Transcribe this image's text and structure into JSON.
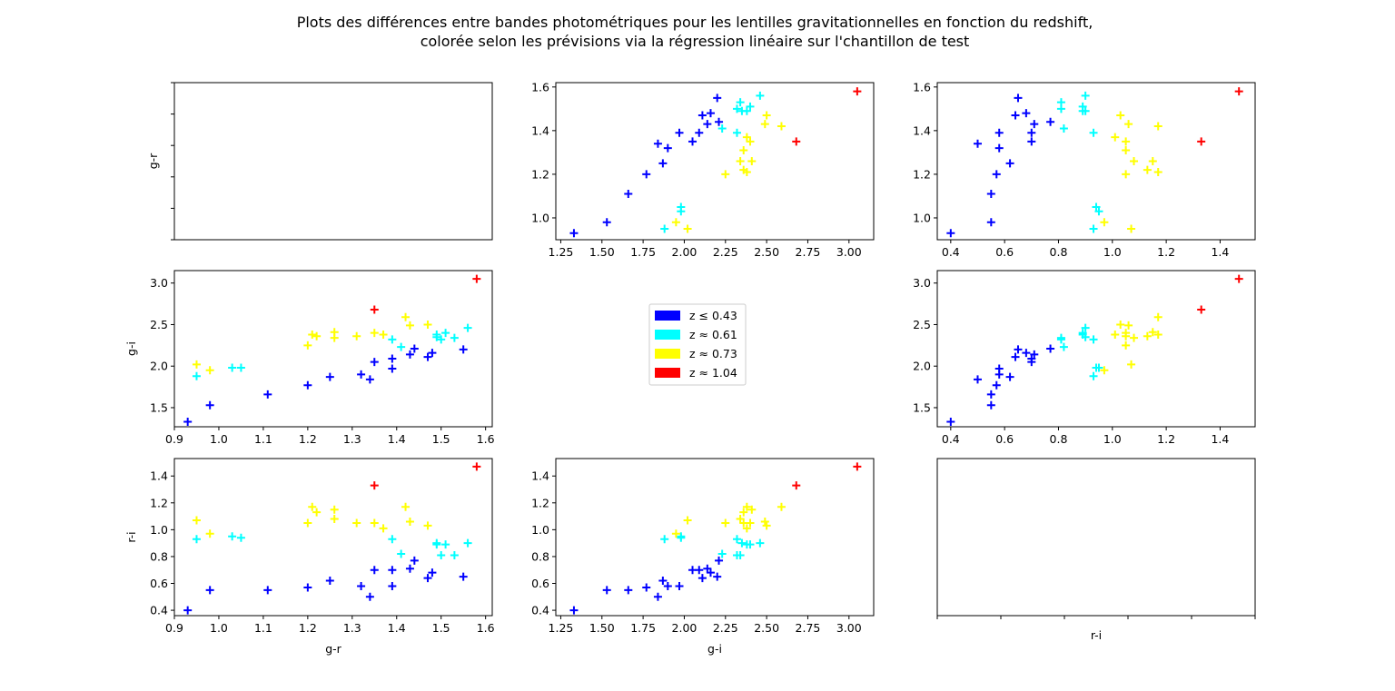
{
  "figure": {
    "title_line1": "Plots des différences entre bandes photométriques pour les lentilles gravitationnelles en fonction du redshift,",
    "title_line2": "colorée selon les prévisions via la régression linéaire sur l'chantillon de test"
  },
  "legend": {
    "items": [
      {
        "label": "z ≤ 0.43",
        "color": "#0000ff"
      },
      {
        "label": "z ≈ 0.61",
        "color": "#00ffff"
      },
      {
        "label": "z ≈ 0.73",
        "color": "#ffff00"
      },
      {
        "label": "z ≈ 1.04",
        "color": "#ff0000"
      }
    ]
  },
  "chart_data": [
    {
      "type": "scatter",
      "panel": "row1-col1",
      "empty": true,
      "xlabel": "",
      "ylabel": "g-r",
      "xticks": [],
      "yticks": []
    },
    {
      "type": "scatter",
      "panel": "row1-col2",
      "x": "g-i",
      "y": "g-r",
      "xlabel": "",
      "ylabel": "",
      "xlim": [
        1.22,
        3.15
      ],
      "ylim": [
        0.9,
        1.62
      ],
      "xticks": [
        "1.25",
        "1.50",
        "1.75",
        "2.00",
        "2.25",
        "2.50",
        "2.75",
        "3.00"
      ],
      "yticks": [
        "1.0",
        "1.2",
        "1.4",
        "1.6"
      ]
    },
    {
      "type": "scatter",
      "panel": "row1-col3",
      "x": "r-i",
      "y": "g-r",
      "xlabel": "",
      "ylabel": "",
      "xlim": [
        0.35,
        1.53
      ],
      "ylim": [
        0.9,
        1.62
      ],
      "xticks": [
        "0.4",
        "0.6",
        "0.8",
        "1.0",
        "1.2",
        "1.4"
      ],
      "yticks": [
        "1.0",
        "1.2",
        "1.4",
        "1.6"
      ]
    },
    {
      "type": "scatter",
      "panel": "row2-col1",
      "x": "g-r",
      "y": "g-i",
      "xlabel": "",
      "ylabel": "g-i",
      "xlim": [
        0.9,
        1.615
      ],
      "ylim": [
        1.27,
        3.15
      ],
      "xticks": [
        "0.9",
        "1.0",
        "1.1",
        "1.2",
        "1.3",
        "1.4",
        "1.5",
        "1.6"
      ],
      "yticks": [
        "1.5",
        "2.0",
        "2.5",
        "3.0"
      ]
    },
    {
      "type": "scatter",
      "panel": "row2-col3",
      "x": "r-i",
      "y": "g-i",
      "xlabel": "",
      "ylabel": "",
      "xlim": [
        0.35,
        1.53
      ],
      "ylim": [
        1.27,
        3.15
      ],
      "xticks": [
        "0.4",
        "0.6",
        "0.8",
        "1.0",
        "1.2",
        "1.4"
      ],
      "yticks": [
        "1.5",
        "2.0",
        "2.5",
        "3.0"
      ]
    },
    {
      "type": "scatter",
      "panel": "row3-col1",
      "x": "g-r",
      "y": "r-i",
      "xlabel": "g-r",
      "ylabel": "r-i",
      "xlim": [
        0.9,
        1.615
      ],
      "ylim": [
        0.36,
        1.53
      ],
      "xticks": [
        "0.9",
        "1.0",
        "1.1",
        "1.2",
        "1.3",
        "1.4",
        "1.5",
        "1.6"
      ],
      "yticks": [
        "0.4",
        "0.6",
        "0.8",
        "1.0",
        "1.2",
        "1.4"
      ]
    },
    {
      "type": "scatter",
      "panel": "row3-col2",
      "x": "g-i",
      "y": "r-i",
      "xlabel": "g-i",
      "ylabel": "",
      "xlim": [
        1.22,
        3.15
      ],
      "ylim": [
        0.36,
        1.53
      ],
      "xticks": [
        "1.25",
        "1.50",
        "1.75",
        "2.00",
        "2.25",
        "2.50",
        "2.75",
        "3.00"
      ],
      "yticks": [
        "0.4",
        "0.6",
        "0.8",
        "1.0",
        "1.2",
        "1.4"
      ]
    },
    {
      "type": "scatter",
      "panel": "row3-col3",
      "empty": true,
      "xlabel": "r-i",
      "ylabel": "",
      "xticks": [],
      "yticks": []
    }
  ],
  "points": [
    {
      "gr": 0.93,
      "gi": 1.33,
      "ri": 0.4,
      "c": 0
    },
    {
      "gr": 0.98,
      "gi": 1.53,
      "ri": 0.55,
      "c": 0
    },
    {
      "gr": 1.11,
      "gi": 1.66,
      "ri": 0.55,
      "c": 0
    },
    {
      "gr": 1.2,
      "gi": 1.77,
      "ri": 0.57,
      "c": 0
    },
    {
      "gr": 1.25,
      "gi": 1.87,
      "ri": 0.62,
      "c": 0
    },
    {
      "gr": 1.32,
      "gi": 1.9,
      "ri": 0.58,
      "c": 0
    },
    {
      "gr": 1.34,
      "gi": 1.84,
      "ri": 0.5,
      "c": 0
    },
    {
      "gr": 1.35,
      "gi": 2.05,
      "ri": 0.7,
      "c": 0
    },
    {
      "gr": 1.39,
      "gi": 1.97,
      "ri": 0.58,
      "c": 0
    },
    {
      "gr": 1.39,
      "gi": 2.09,
      "ri": 0.7,
      "c": 0
    },
    {
      "gr": 1.43,
      "gi": 2.14,
      "ri": 0.71,
      "c": 0
    },
    {
      "gr": 1.44,
      "gi": 2.21,
      "ri": 0.77,
      "c": 0
    },
    {
      "gr": 1.47,
      "gi": 2.11,
      "ri": 0.64,
      "c": 0
    },
    {
      "gr": 1.48,
      "gi": 2.16,
      "ri": 0.68,
      "c": 0
    },
    {
      "gr": 1.55,
      "gi": 2.2,
      "ri": 0.65,
      "c": 0
    },
    {
      "gr": 0.95,
      "gi": 1.88,
      "ri": 0.93,
      "c": 1
    },
    {
      "gr": 1.03,
      "gi": 1.98,
      "ri": 0.95,
      "c": 1
    },
    {
      "gr": 1.05,
      "gi": 1.98,
      "ri": 0.94,
      "c": 1
    },
    {
      "gr": 1.39,
      "gi": 2.32,
      "ri": 0.93,
      "c": 1
    },
    {
      "gr": 1.41,
      "gi": 2.23,
      "ri": 0.82,
      "c": 1
    },
    {
      "gr": 1.49,
      "gi": 2.38,
      "ri": 0.89,
      "c": 1
    },
    {
      "gr": 1.49,
      "gi": 2.35,
      "ri": 0.9,
      "c": 1
    },
    {
      "gr": 1.5,
      "gi": 2.32,
      "ri": 0.81,
      "c": 1
    },
    {
      "gr": 1.51,
      "gi": 2.4,
      "ri": 0.89,
      "c": 1
    },
    {
      "gr": 1.53,
      "gi": 2.34,
      "ri": 0.81,
      "c": 1
    },
    {
      "gr": 1.56,
      "gi": 2.46,
      "ri": 0.9,
      "c": 1
    },
    {
      "gr": 0.95,
      "gi": 2.02,
      "ri": 1.07,
      "c": 2
    },
    {
      "gr": 0.98,
      "gi": 1.95,
      "ri": 0.97,
      "c": 2
    },
    {
      "gr": 1.2,
      "gi": 2.25,
      "ri": 1.05,
      "c": 2
    },
    {
      "gr": 1.21,
      "gi": 2.38,
      "ri": 1.17,
      "c": 2
    },
    {
      "gr": 1.22,
      "gi": 2.36,
      "ri": 1.13,
      "c": 2
    },
    {
      "gr": 1.26,
      "gi": 2.34,
      "ri": 1.08,
      "c": 2
    },
    {
      "gr": 1.26,
      "gi": 2.41,
      "ri": 1.15,
      "c": 2
    },
    {
      "gr": 1.31,
      "gi": 2.36,
      "ri": 1.05,
      "c": 2
    },
    {
      "gr": 1.35,
      "gi": 2.4,
      "ri": 1.05,
      "c": 2
    },
    {
      "gr": 1.37,
      "gi": 2.38,
      "ri": 1.01,
      "c": 2
    },
    {
      "gr": 1.42,
      "gi": 2.59,
      "ri": 1.17,
      "c": 2
    },
    {
      "gr": 1.43,
      "gi": 2.49,
      "ri": 1.06,
      "c": 2
    },
    {
      "gr": 1.47,
      "gi": 2.5,
      "ri": 1.03,
      "c": 2
    },
    {
      "gr": 1.35,
      "gi": 2.68,
      "ri": 1.33,
      "c": 3
    },
    {
      "gr": 1.58,
      "gi": 3.05,
      "ri": 1.47,
      "c": 3
    }
  ]
}
